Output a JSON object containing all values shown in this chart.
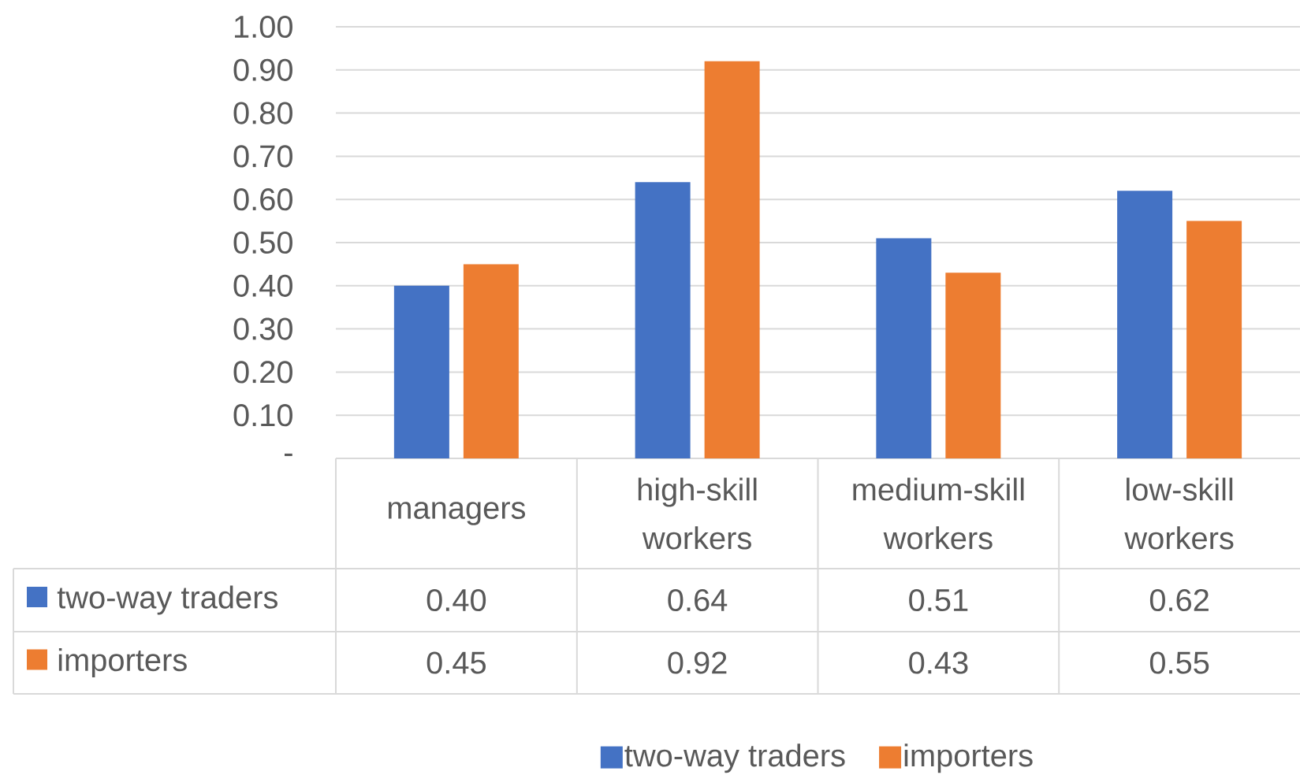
{
  "chart_data": {
    "type": "bar",
    "categories": [
      "managers",
      "high-skill workers",
      "medium-skill workers",
      "low-skill workers"
    ],
    "series": [
      {
        "name": "two-way traders",
        "color": "#4472c4",
        "values": [
          0.4,
          0.64,
          0.51,
          0.62
        ],
        "value_labels": [
          "0.40",
          "0.64",
          "0.51",
          "0.62"
        ]
      },
      {
        "name": "importers",
        "color": "#ed7d31",
        "values": [
          0.45,
          0.92,
          0.43,
          0.55
        ],
        "value_labels": [
          "0.45",
          "0.92",
          "0.43",
          "0.55"
        ]
      }
    ],
    "ylim": [
      0,
      1.0
    ],
    "yticks": [
      {
        "value": 0,
        "label": "-"
      },
      {
        "value": 0.1,
        "label": "0.10"
      },
      {
        "value": 0.2,
        "label": "0.20"
      },
      {
        "value": 0.3,
        "label": "0.30"
      },
      {
        "value": 0.4,
        "label": "0.40"
      },
      {
        "value": 0.5,
        "label": "0.50"
      },
      {
        "value": 0.6,
        "label": "0.60"
      },
      {
        "value": 0.7,
        "label": "0.70"
      },
      {
        "value": 0.8,
        "label": "0.80"
      },
      {
        "value": 0.9,
        "label": "0.90"
      },
      {
        "value": 1.0,
        "label": "1.00"
      }
    ],
    "grid": "y",
    "legend": "bottom"
  }
}
